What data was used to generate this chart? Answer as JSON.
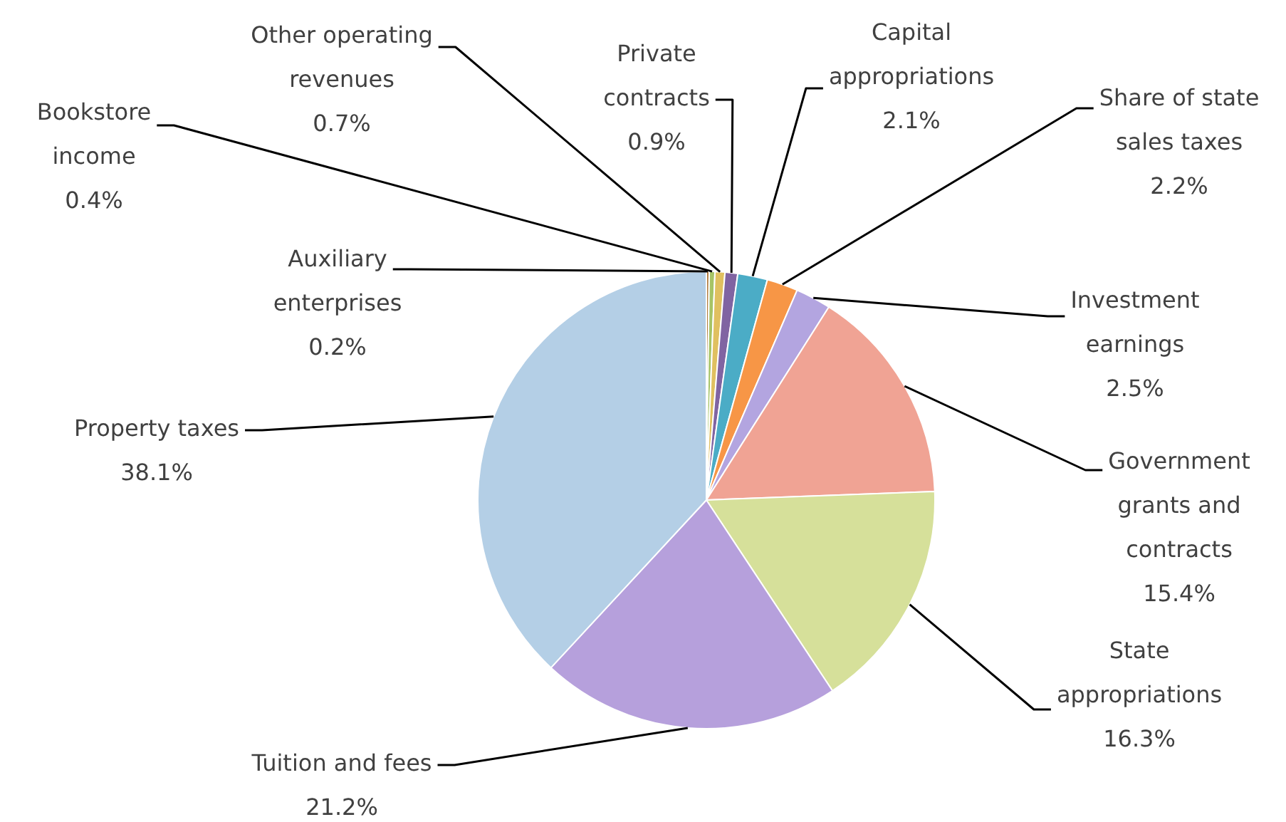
{
  "chart_data": {
    "type": "pie",
    "categories": [
      "Auxiliary enterprises",
      "Bookstore income",
      "Other operating revenues",
      "Private contracts",
      "Capital appropriations",
      "Share of state sales taxes",
      "Investment earnings",
      "Government grants and contracts",
      "State appropriations",
      "Tuition and fees",
      "Property taxes"
    ],
    "values": [
      0.2,
      0.4,
      0.7,
      0.9,
      2.1,
      2.2,
      2.5,
      15.4,
      16.3,
      21.2,
      38.1
    ],
    "colors": [
      "#b07a3c",
      "#a6c466",
      "#e0c060",
      "#8064a2",
      "#4bacc6",
      "#f79646",
      "#b3a5e0",
      "#f0a394",
      "#d6e09a",
      "#b6a0dc",
      "#b4cfe6"
    ],
    "value_labels": [
      "0.2%",
      "0.4%",
      "0.7%",
      "0.9%",
      "2.1%",
      "2.2%",
      "2.5%",
      "15.4%",
      "16.3%",
      "21.2%",
      "38.1%"
    ],
    "legend": false
  }
}
